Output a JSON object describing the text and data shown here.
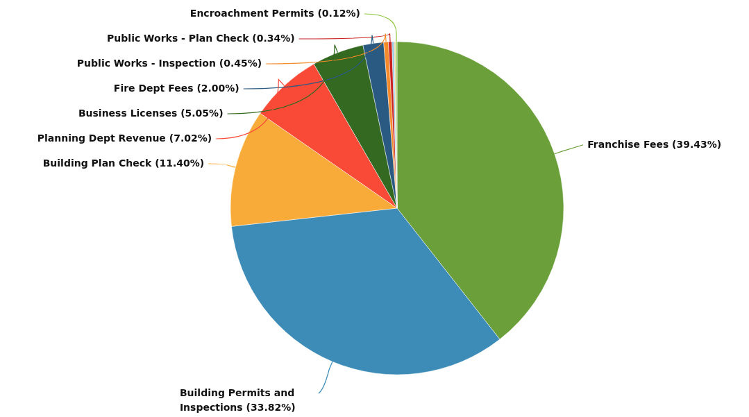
{
  "chart_data": {
    "type": "pie",
    "categories": [
      "Franchise Fees",
      "Building Permits and Inspections",
      "Building Plan Check",
      "Planning Dept Revenue",
      "Business Licenses",
      "Fire Dept Fees",
      "Public Works - Inspection",
      "Public Works - Plan Check",
      null,
      null,
      "Encroachment Permits"
    ],
    "values": [
      39.43,
      33.82,
      11.4,
      7.02,
      5.05,
      2.0,
      0.45,
      0.34,
      0.2,
      0.17,
      0.12
    ],
    "colors": [
      "#6a9f3a",
      "#3d8bb7",
      "#f8ab38",
      "#f94a38",
      "#346921",
      "#2a5a82",
      "#f58a2a",
      "#c8211e",
      "#8fc3e0",
      "#e9d8a6",
      "#8dc63f"
    ],
    "value_labels": [
      "(39.43%)",
      "(33.82%)",
      "(11.40%)",
      "(7.02%)",
      "(5.05%)",
      "(2.00%)",
      "(0.45%)",
      "(0.34%)",
      null,
      null,
      "(0.12%)"
    ]
  }
}
